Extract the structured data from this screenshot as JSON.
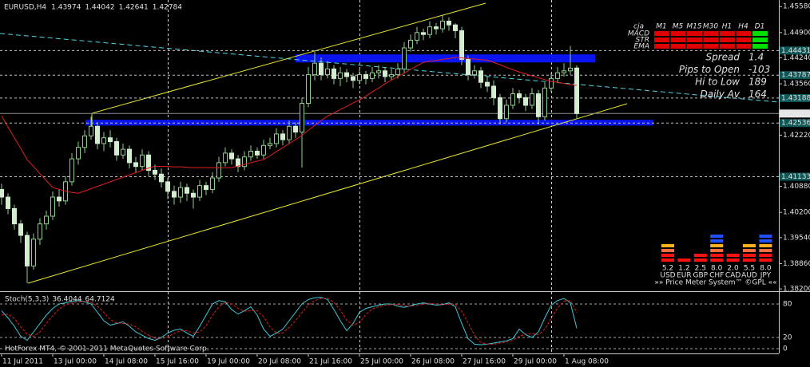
{
  "chart_data": {
    "type": "candlestick",
    "title": "EURUSD,H4",
    "footer": "HotForex MT4, © 2001-2011 MetaQuotes Software Corp.",
    "categories": [
      "11 Jul 2011",
      null,
      null,
      null,
      null,
      null,
      null,
      null,
      "13 Jul 00:00",
      null,
      null,
      null,
      null,
      null,
      null,
      null,
      "14 Jul 08:00",
      null,
      null,
      null,
      null,
      null,
      null,
      null,
      "15 Jul 16:00",
      null,
      null,
      null,
      null,
      null,
      null,
      null,
      "19 Jul 00:00",
      null,
      null,
      null,
      null,
      null,
      null,
      null,
      "20 Jul 08:00",
      null,
      null,
      null,
      null,
      null,
      null,
      null,
      "21 Jul 16:00",
      null,
      null,
      null,
      null,
      null,
      null,
      null,
      "25 Jul 00:00",
      null,
      null,
      null,
      null,
      null,
      null,
      null,
      "26 Jul 08:00",
      null,
      null,
      null,
      null,
      null,
      null,
      null,
      "27 Jul 16:00",
      null,
      null,
      null,
      null,
      null,
      null,
      null,
      "29 Jul 00:00",
      null,
      null,
      null,
      null,
      null,
      null,
      null,
      "1 Aug 08:00",
      null,
      null
    ],
    "open": [
      1.408,
      1.406,
      1.403,
      1.399,
      1.396,
      1.388,
      1.395,
      1.399,
      1.401,
      1.406,
      1.405,
      1.41,
      1.416,
      1.419,
      1.422,
      1.4245,
      1.42,
      1.4215,
      1.4205,
      1.417,
      1.4185,
      1.415,
      1.414,
      1.417,
      1.413,
      1.412,
      1.41,
      1.4075,
      1.406,
      1.4085,
      1.407,
      1.406,
      1.409,
      1.408,
      1.411,
      1.415,
      1.4175,
      1.416,
      1.414,
      1.4165,
      1.418,
      1.417,
      1.4195,
      1.42,
      1.4225,
      1.421,
      1.4245,
      1.423,
      1.4305,
      1.438,
      1.441,
      1.438,
      1.4395,
      1.437,
      1.4385,
      1.4375,
      1.4365,
      1.438,
      1.437,
      1.4385,
      1.439,
      1.4375,
      1.438,
      1.4395,
      1.445,
      1.447,
      1.449,
      1.4485,
      1.4505,
      1.45,
      1.452,
      1.451,
      1.4495,
      1.442,
      1.438,
      1.439,
      1.436,
      1.435,
      1.432,
      1.4265,
      1.43,
      1.433,
      1.432,
      1.43,
      1.433,
      1.427,
      1.4345,
      1.437,
      1.4385,
      1.439,
      1.43974
    ],
    "high": [
      1.4095,
      1.407,
      1.404,
      1.4,
      1.397,
      1.3965,
      1.4005,
      1.4025,
      1.4075,
      1.408,
      1.4115,
      1.4175,
      1.4205,
      1.4235,
      1.427,
      1.4255,
      1.423,
      1.4235,
      1.4215,
      1.42,
      1.4195,
      1.4165,
      1.4185,
      1.418,
      1.4145,
      1.4135,
      1.411,
      1.409,
      1.41,
      1.4095,
      1.408,
      1.4105,
      1.41,
      1.4125,
      1.4165,
      1.419,
      1.4185,
      1.417,
      1.418,
      1.4195,
      1.419,
      1.421,
      1.4215,
      1.424,
      1.4235,
      1.426,
      1.4255,
      1.432,
      1.44,
      1.444,
      1.4425,
      1.4415,
      1.4405,
      1.44,
      1.4395,
      1.4385,
      1.4395,
      1.439,
      1.44,
      1.4405,
      1.44,
      1.4395,
      1.441,
      1.4465,
      1.4485,
      1.4505,
      1.45,
      1.452,
      1.4515,
      1.4535,
      1.453,
      1.4515,
      1.4505,
      1.443,
      1.4405,
      1.44,
      1.4375,
      1.4365,
      1.433,
      1.4315,
      1.4345,
      1.434,
      1.433,
      1.4345,
      1.434,
      1.436,
      1.4385,
      1.44,
      1.441,
      1.4455,
      1.44042
    ],
    "low": [
      1.404,
      1.4015,
      1.3975,
      1.394,
      1.3835,
      1.387,
      1.3935,
      1.3975,
      1.4,
      1.4035,
      1.404,
      1.409,
      1.4145,
      1.4175,
      1.421,
      1.4185,
      1.418,
      1.419,
      1.4155,
      1.416,
      1.4135,
      1.4125,
      1.413,
      1.4115,
      1.4105,
      1.4085,
      1.4055,
      1.404,
      1.4045,
      1.405,
      1.403,
      1.405,
      1.4065,
      1.407,
      1.41,
      1.414,
      1.4145,
      1.4125,
      1.413,
      1.4155,
      1.416,
      1.416,
      1.4185,
      1.419,
      1.4195,
      1.42,
      1.4215,
      1.4137,
      1.4295,
      1.4365,
      1.4365,
      1.437,
      1.4355,
      1.435,
      1.436,
      1.4345,
      1.4355,
      1.4355,
      1.436,
      1.437,
      1.436,
      1.4365,
      1.437,
      1.4385,
      1.444,
      1.446,
      1.447,
      1.4475,
      1.4485,
      1.449,
      1.4495,
      1.4475,
      1.4405,
      1.4365,
      1.437,
      1.4345,
      1.4335,
      1.43,
      1.425,
      1.4255,
      1.429,
      1.4305,
      1.4285,
      1.429,
      1.425,
      1.426,
      1.4335,
      1.436,
      1.4375,
      1.438,
      1.42641
    ],
    "close": [
      1.406,
      1.403,
      1.399,
      1.396,
      1.388,
      1.395,
      1.399,
      1.401,
      1.406,
      1.405,
      1.41,
      1.416,
      1.419,
      1.422,
      1.4245,
      1.42,
      1.4215,
      1.4205,
      1.417,
      1.4185,
      1.415,
      1.414,
      1.417,
      1.413,
      1.412,
      1.41,
      1.4075,
      1.406,
      1.4085,
      1.407,
      1.406,
      1.409,
      1.408,
      1.411,
      1.415,
      1.4175,
      1.416,
      1.414,
      1.4165,
      1.418,
      1.417,
      1.4195,
      1.42,
      1.4225,
      1.421,
      1.4245,
      1.423,
      1.4305,
      1.438,
      1.441,
      1.438,
      1.4395,
      1.437,
      1.4385,
      1.4375,
      1.4365,
      1.438,
      1.437,
      1.4385,
      1.439,
      1.4375,
      1.438,
      1.4395,
      1.445,
      1.447,
      1.449,
      1.4485,
      1.4505,
      1.45,
      1.452,
      1.451,
      1.4495,
      1.442,
      1.438,
      1.439,
      1.436,
      1.435,
      1.432,
      1.4265,
      1.43,
      1.433,
      1.432,
      1.43,
      1.433,
      1.427,
      1.4345,
      1.437,
      1.4385,
      1.439,
      1.4397,
      1.42784
    ],
    "colors": {
      "up": "#000000",
      "down": "#d4ecd0",
      "wick": "#8ccf8c",
      "up_outline": "#8ccf8c"
    },
    "ma": {
      "color": "#e02020",
      "values": [
        1.4272,
        1.4243,
        1.4215,
        1.4187,
        1.4158,
        1.414,
        1.4121,
        1.4103,
        1.4085,
        1.408,
        1.4076,
        1.4072,
        1.407,
        1.4076,
        1.4082,
        1.4088,
        1.4094,
        1.41,
        1.4106,
        1.4112,
        1.4118,
        1.4124,
        1.413,
        1.4136,
        1.4141,
        1.414,
        1.414,
        1.4139,
        1.4139,
        1.4138,
        1.4137,
        1.4137,
        1.4137,
        1.4137,
        1.4137,
        1.4137,
        1.4137,
        1.4141,
        1.4145,
        1.415,
        1.4154,
        1.4158,
        1.4168,
        1.4179,
        1.4189,
        1.42,
        1.421,
        1.4222,
        1.4235,
        1.4247,
        1.426,
        1.4272,
        1.428,
        1.4289,
        1.4297,
        1.4306,
        1.4314,
        1.4324,
        1.4335,
        1.4345,
        1.4356,
        1.4366,
        1.4375,
        1.4384,
        1.4394,
        1.4403,
        1.4412,
        1.4415,
        1.4417,
        1.442,
        1.4422,
        1.4425,
        1.4424,
        1.4422,
        1.4421,
        1.4419,
        1.4418,
        1.4412,
        1.4406,
        1.4399,
        1.4393,
        1.4387,
        1.4382,
        1.4377,
        1.4372,
        1.4367,
        1.4362,
        1.436,
        1.4357,
        1.4354,
        1.4352
      ]
    },
    "ylim": [
      1.3814,
      1.4571
    ],
    "yticks": [
      {
        "value": 1.4558,
        "label": "1.45580"
      },
      {
        "value": 1.449,
        "label": "1.44900"
      },
      {
        "value": 1.4424,
        "label": "1.44240"
      },
      {
        "value": 1.4356,
        "label": "1.43560"
      },
      {
        "value": 1.4222,
        "label": "1.42220"
      },
      {
        "value": 1.4088,
        "label": "1.40880"
      },
      {
        "value": 1.402,
        "label": "1.40200"
      },
      {
        "value": 1.3954,
        "label": "1.39540"
      },
      {
        "value": 1.3886,
        "label": "1.38860"
      },
      {
        "value": 1.382,
        "label": "1.38200"
      }
    ],
    "levels": [
      1.44431,
      1.43787,
      1.43188,
      1.42536,
      1.41133
    ],
    "zones": {
      "color": "#0a14f0",
      "ranges": [
        [
          1.4433,
          1.4412
        ],
        [
          1.4262,
          1.4247
        ]
      ]
    },
    "info": [
      {
        "label": "Spread",
        "value": 1.4
      },
      {
        "label": "Pips to Open",
        "value": -103
      },
      {
        "label": "Hi to Low",
        "value": 189
      },
      {
        "label": "Daily Av",
        "value": 164
      }
    ],
    "signals": {
      "title": "cja",
      "columns": [
        "M1",
        "M5",
        "M15",
        "M30",
        "H1",
        "H4",
        "D1"
      ],
      "rows": [
        {
          "name": "MACD",
          "colors": [
            "#e00000",
            "#e00000",
            "#e00000",
            "#e00000",
            "#e00000",
            "#e00000",
            "#00e000"
          ]
        },
        {
          "name": "STR",
          "colors": [
            "#e00000",
            "#e00000",
            "#e00000",
            "#e00000",
            "#e00000",
            "#e00000",
            "#00e000"
          ]
        },
        {
          "name": "EMA",
          "colors": [
            "#e00000",
            "#e00000",
            "#e00000",
            "#e00000",
            "#e00000",
            "#e00000",
            "#00e000"
          ]
        }
      ]
    },
    "meter": {
      "currencies": [
        "USD",
        "EUR",
        "GBP",
        "CHF",
        "CAD",
        "AUD",
        "JPY"
      ],
      "values": [
        5.2,
        1.2,
        2.5,
        8.0,
        2.0,
        5.5,
        8.0
      ],
      "value_labels": [
        "5.2",
        "1.2",
        "2.5",
        "8.0",
        "2.0",
        "5.5",
        "8.0"
      ],
      "segment_colors": [
        "#ff1010",
        "#ff1010",
        "#ff7040",
        "#ffb020",
        "#2050ff",
        "#2050ff"
      ],
      "footer": "»» Price Meter System™ ©GPL ««"
    },
    "stochastic": {
      "title": "Stoch(5,3,3)",
      "ylim": [
        0,
        100
      ],
      "yticks": [
        0,
        20,
        80
      ],
      "series": [
        {
          "color": "#40c8d8",
          "values": [
            68,
            55,
            40,
            22,
            15,
            30,
            45,
            60,
            72,
            80,
            82,
            85,
            86,
            84,
            80,
            65,
            50,
            42,
            45,
            48,
            40,
            30,
            24,
            18,
            15,
            20,
            28,
            33,
            35,
            28,
            22,
            40,
            60,
            80,
            86,
            84,
            70,
            62,
            68,
            75,
            60,
            35,
            22,
            28,
            35,
            50,
            65,
            80,
            88,
            91,
            92,
            88,
            70,
            50,
            32,
            45,
            65,
            72,
            75,
            78,
            80,
            80,
            76,
            74,
            77,
            80,
            82,
            80,
            78,
            79,
            82,
            75,
            45,
            18,
            8,
            7,
            8,
            10,
            12,
            14,
            18,
            35,
            25,
            20,
            30,
            55,
            78,
            86,
            90,
            82,
            36.4044
          ]
        },
        {
          "color": "#e02020",
          "values": [
            60,
            62,
            54,
            39,
            26,
            22,
            30,
            45,
            59,
            71,
            78,
            82,
            84,
            85,
            83,
            76,
            65,
            52,
            46,
            45,
            44,
            39,
            31,
            24,
            19,
            18,
            21,
            27,
            32,
            32,
            28,
            30,
            41,
            60,
            75,
            83,
            80,
            72,
            67,
            68,
            68,
            57,
            39,
            28,
            28,
            38,
            50,
            65,
            78,
            86,
            90,
            90,
            83,
            69,
            51,
            42,
            47,
            61,
            71,
            75,
            78,
            79,
            79,
            77,
            76,
            77,
            80,
            81,
            80,
            79,
            80,
            79,
            67,
            46,
            24,
            11,
            8,
            8,
            10,
            12,
            15,
            22,
            26,
            27,
            25,
            35,
            54,
            73,
            85,
            86,
            64.7124
          ]
        }
      ]
    }
  }
}
